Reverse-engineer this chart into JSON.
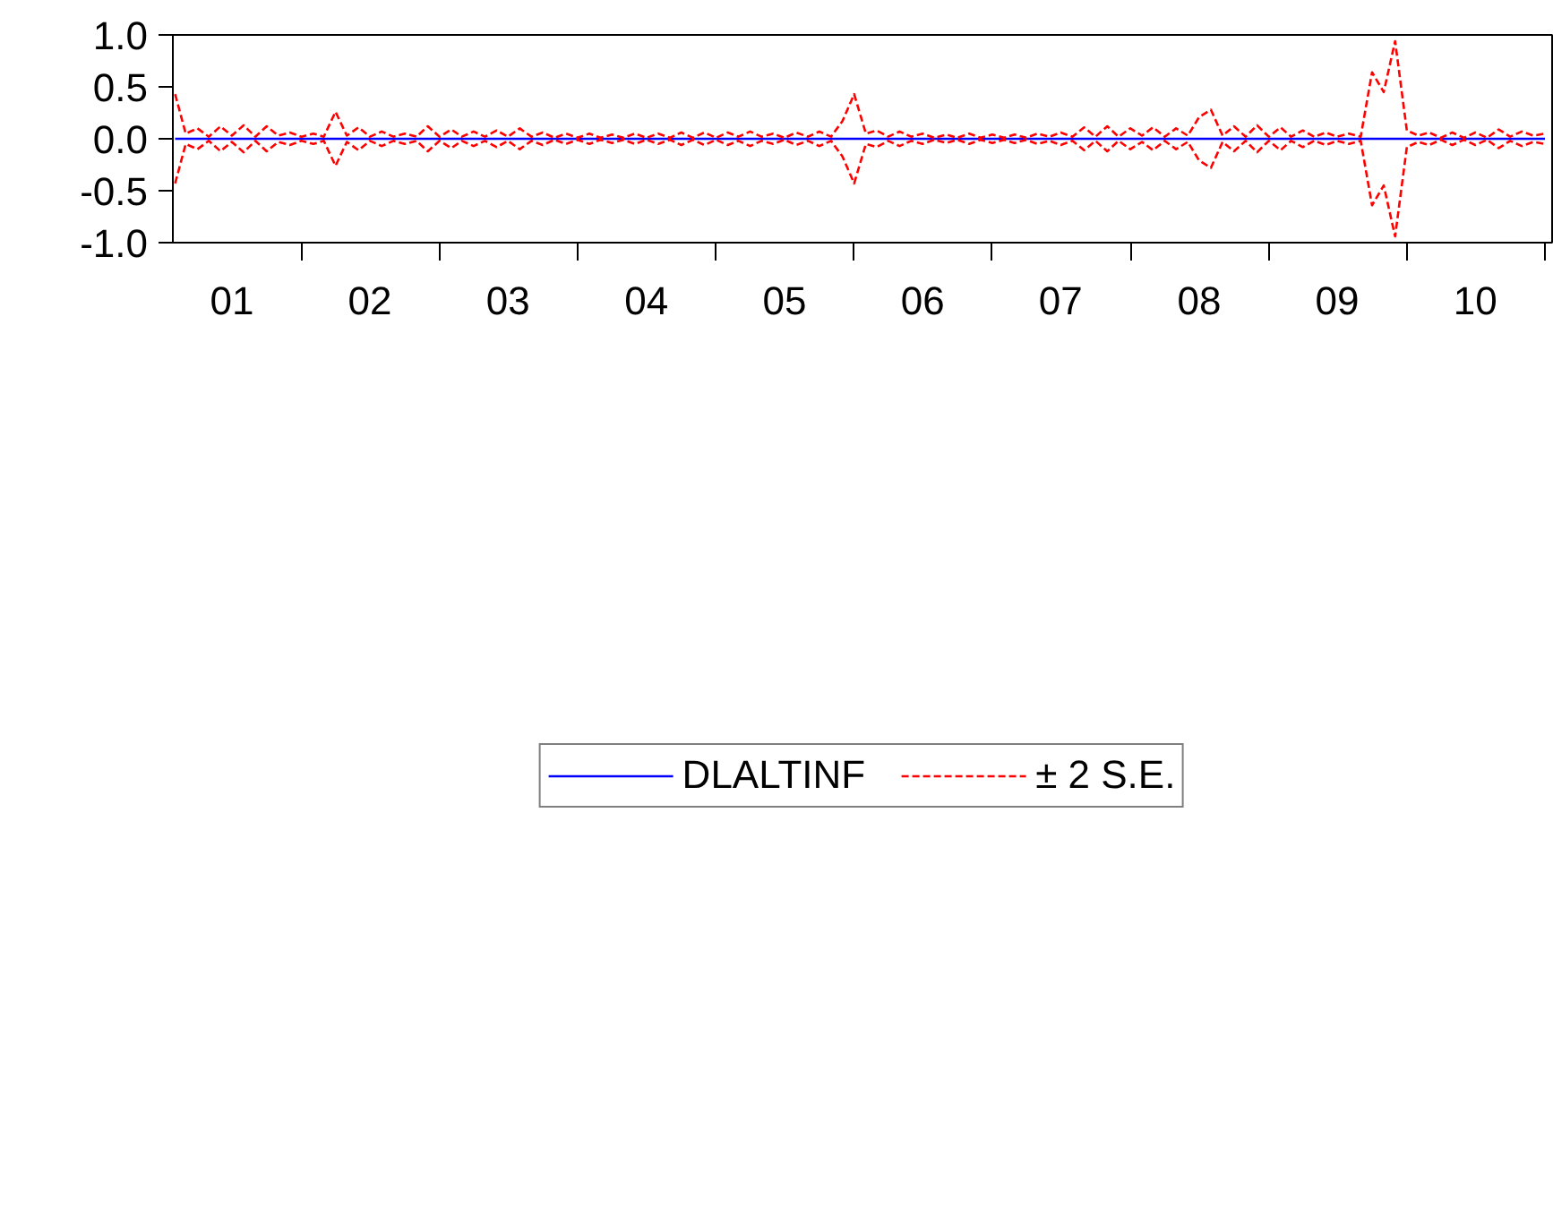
{
  "chart_data": {
    "type": "line",
    "legend": "bottom",
    "grid": false,
    "xlim": [
      "2001-01-26",
      "2011-01-20"
    ],
    "xticks": [
      {
        "value": "2001-07-01",
        "label": "01"
      },
      {
        "value": "2002-01-01",
        "label": null
      },
      {
        "value": "2002-07-01",
        "label": "02"
      },
      {
        "value": "2003-01-01",
        "label": null
      },
      {
        "value": "2003-07-01",
        "label": "03"
      },
      {
        "value": "2004-01-01",
        "label": null
      },
      {
        "value": "2004-07-01",
        "label": "04"
      },
      {
        "value": "2005-01-01",
        "label": null
      },
      {
        "value": "2005-07-01",
        "label": "05"
      },
      {
        "value": "2006-01-01",
        "label": null
      },
      {
        "value": "2006-07-01",
        "label": "06"
      },
      {
        "value": "2007-01-01",
        "label": null
      },
      {
        "value": "2007-07-01",
        "label": "07"
      },
      {
        "value": "2008-01-01",
        "label": null
      },
      {
        "value": "2008-07-01",
        "label": "08"
      },
      {
        "value": "2009-01-01",
        "label": null
      },
      {
        "value": "2009-07-01",
        "label": "09"
      },
      {
        "value": "2010-01-01",
        "label": null
      },
      {
        "value": "2010-07-01",
        "label": "10"
      },
      {
        "value": "2011-01-01",
        "label": null
      }
    ],
    "ylim": [
      -1.0,
      1.0
    ],
    "yticks": [
      {
        "value": -1,
        "label": "-1.0"
      },
      {
        "value": -0.5,
        "label": "-0.5"
      },
      {
        "value": 0,
        "label": "0.0"
      },
      {
        "value": 0.5,
        "label": "0.5"
      },
      {
        "value": 1,
        "label": "1.0"
      }
    ],
    "x": [
      "2001-02",
      "2001-03",
      "2001-04",
      "2001-05",
      "2001-06",
      "2001-07",
      "2001-08",
      "2001-09",
      "2001-10",
      "2001-11",
      "2001-12",
      "2002-01",
      "2002-02",
      "2002-03",
      "2002-04",
      "2002-05",
      "2002-06",
      "2002-07",
      "2002-08",
      "2002-09",
      "2002-10",
      "2002-11",
      "2002-12",
      "2003-01",
      "2003-02",
      "2003-03",
      "2003-04",
      "2003-05",
      "2003-06",
      "2003-07",
      "2003-08",
      "2003-09",
      "2003-10",
      "2003-11",
      "2003-12",
      "2004-01",
      "2004-02",
      "2004-03",
      "2004-04",
      "2004-05",
      "2004-06",
      "2004-07",
      "2004-08",
      "2004-09",
      "2004-10",
      "2004-11",
      "2004-12",
      "2005-01",
      "2005-02",
      "2005-03",
      "2005-04",
      "2005-05",
      "2005-06",
      "2005-07",
      "2005-08",
      "2005-09",
      "2005-10",
      "2005-11",
      "2005-12",
      "2006-01",
      "2006-02",
      "2006-03",
      "2006-04",
      "2006-05",
      "2006-06",
      "2006-07",
      "2006-08",
      "2006-09",
      "2006-10",
      "2006-11",
      "2006-12",
      "2007-01",
      "2007-02",
      "2007-03",
      "2007-04",
      "2007-05",
      "2007-06",
      "2007-07",
      "2007-08",
      "2007-09",
      "2007-10",
      "2007-11",
      "2007-12",
      "2008-01",
      "2008-02",
      "2008-03",
      "2008-04",
      "2008-05",
      "2008-06",
      "2008-07",
      "2008-08",
      "2008-09",
      "2008-10",
      "2008-11",
      "2008-12",
      "2009-01",
      "2009-02",
      "2009-03",
      "2009-04",
      "2009-05",
      "2009-06",
      "2009-07",
      "2009-08",
      "2009-09",
      "2009-10",
      "2009-11",
      "2009-12",
      "2010-01",
      "2010-02",
      "2010-03",
      "2010-04",
      "2010-05",
      "2010-06",
      "2010-07",
      "2010-08",
      "2010-09",
      "2010-10",
      "2010-11",
      "2010-12",
      "2011-01"
    ],
    "series": [
      {
        "name": "DLALTINF",
        "color": "#0000ff",
        "line_style": "solid",
        "x": [
          "2001-02",
          "2011-01"
        ],
        "values": [
          0.0,
          0.0
        ]
      },
      {
        "name": "± 2 S.E.",
        "color": "#ff0000",
        "line_style": "dashed",
        "values": [
          0.43,
          0.05,
          0.1,
          0.02,
          0.12,
          0.03,
          0.13,
          0.02,
          0.12,
          0.03,
          0.06,
          0.02,
          0.05,
          0.02,
          0.26,
          0.03,
          0.11,
          0.02,
          0.07,
          0.02,
          0.05,
          0.02,
          0.12,
          0.02,
          0.09,
          0.02,
          0.07,
          0.02,
          0.08,
          0.02,
          0.1,
          0.02,
          0.06,
          0.01,
          0.05,
          0.01,
          0.05,
          0.01,
          0.04,
          0.01,
          0.05,
          0.01,
          0.05,
          0.01,
          0.06,
          0.01,
          0.06,
          0.01,
          0.06,
          0.02,
          0.07,
          0.02,
          0.05,
          0.01,
          0.06,
          0.02,
          0.07,
          0.02,
          0.17,
          0.43,
          0.05,
          0.08,
          0.02,
          0.07,
          0.02,
          0.05,
          0.01,
          0.04,
          0.01,
          0.05,
          0.01,
          0.04,
          0.01,
          0.04,
          0.01,
          0.05,
          0.02,
          0.06,
          0.02,
          0.11,
          0.02,
          0.12,
          0.02,
          0.1,
          0.03,
          0.11,
          0.02,
          0.1,
          0.03,
          0.21,
          0.28,
          0.03,
          0.12,
          0.02,
          0.13,
          0.02,
          0.11,
          0.02,
          0.08,
          0.02,
          0.06,
          0.02,
          0.05,
          0.02,
          0.64,
          0.45,
          0.94,
          0.08,
          0.03,
          0.06,
          0.01,
          0.06,
          0.01,
          0.06,
          0.01,
          0.09,
          0.02,
          0.07,
          0.03,
          0.05
        ]
      },
      {
        "color": "#ff0000",
        "line_style": "dashed",
        "values": [
          -0.43,
          -0.05,
          -0.1,
          -0.02,
          -0.12,
          -0.03,
          -0.13,
          -0.02,
          -0.12,
          -0.03,
          -0.06,
          -0.02,
          -0.05,
          -0.02,
          -0.26,
          -0.03,
          -0.11,
          -0.02,
          -0.07,
          -0.02,
          -0.05,
          -0.02,
          -0.12,
          -0.02,
          -0.09,
          -0.02,
          -0.07,
          -0.02,
          -0.08,
          -0.02,
          -0.1,
          -0.02,
          -0.06,
          -0.01,
          -0.05,
          -0.01,
          -0.05,
          -0.01,
          -0.04,
          -0.01,
          -0.05,
          -0.01,
          -0.05,
          -0.01,
          -0.06,
          -0.01,
          -0.06,
          -0.01,
          -0.06,
          -0.02,
          -0.07,
          -0.02,
          -0.05,
          -0.01,
          -0.06,
          -0.02,
          -0.07,
          -0.02,
          -0.17,
          -0.43,
          -0.05,
          -0.08,
          -0.02,
          -0.07,
          -0.02,
          -0.05,
          -0.01,
          -0.04,
          -0.01,
          -0.05,
          -0.01,
          -0.04,
          -0.01,
          -0.04,
          -0.01,
          -0.05,
          -0.02,
          -0.06,
          -0.02,
          -0.11,
          -0.02,
          -0.12,
          -0.02,
          -0.1,
          -0.03,
          -0.11,
          -0.02,
          -0.1,
          -0.03,
          -0.21,
          -0.28,
          -0.03,
          -0.12,
          -0.02,
          -0.13,
          -0.02,
          -0.11,
          -0.02,
          -0.08,
          -0.02,
          -0.06,
          -0.02,
          -0.05,
          -0.02,
          -0.64,
          -0.45,
          -0.94,
          -0.08,
          -0.03,
          -0.06,
          -0.01,
          -0.06,
          -0.01,
          -0.06,
          -0.01,
          -0.09,
          -0.02,
          -0.07,
          -0.03,
          -0.05
        ]
      }
    ]
  }
}
